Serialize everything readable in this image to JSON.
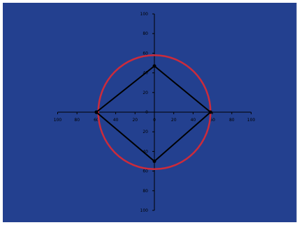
{
  "chart_data": {
    "type": "scatter",
    "title": "",
    "xlabel": "",
    "ylabel": "",
    "xlim": [
      -100,
      100
    ],
    "ylim": [
      -100,
      100
    ],
    "xticks": [
      -100,
      -80,
      -60,
      -40,
      -20,
      0,
      20,
      40,
      60,
      80,
      100
    ],
    "yticks": [
      -100,
      -80,
      -60,
      -40,
      -20,
      0,
      20,
      40,
      60,
      80,
      100
    ],
    "xtick_labels": [
      "100",
      "80",
      "60",
      "40",
      "20",
      "0",
      "20",
      "40",
      "60",
      "80",
      "100"
    ],
    "ytick_labels": [
      "100",
      "80",
      "60",
      "40",
      "20",
      "0",
      "20",
      "40",
      "60",
      "80",
      "100"
    ],
    "grid": false,
    "legend": "none",
    "background_color": "#23408f",
    "series": [
      {
        "kind": "circle",
        "color": "#cc2b3b",
        "center": [
          0,
          0
        ],
        "radius": 58
      },
      {
        "kind": "polygon",
        "color": "#000000",
        "x": [
          0,
          58,
          0,
          -60,
          0
        ],
        "y": [
          47,
          0,
          -50,
          0,
          47
        ]
      }
    ]
  }
}
